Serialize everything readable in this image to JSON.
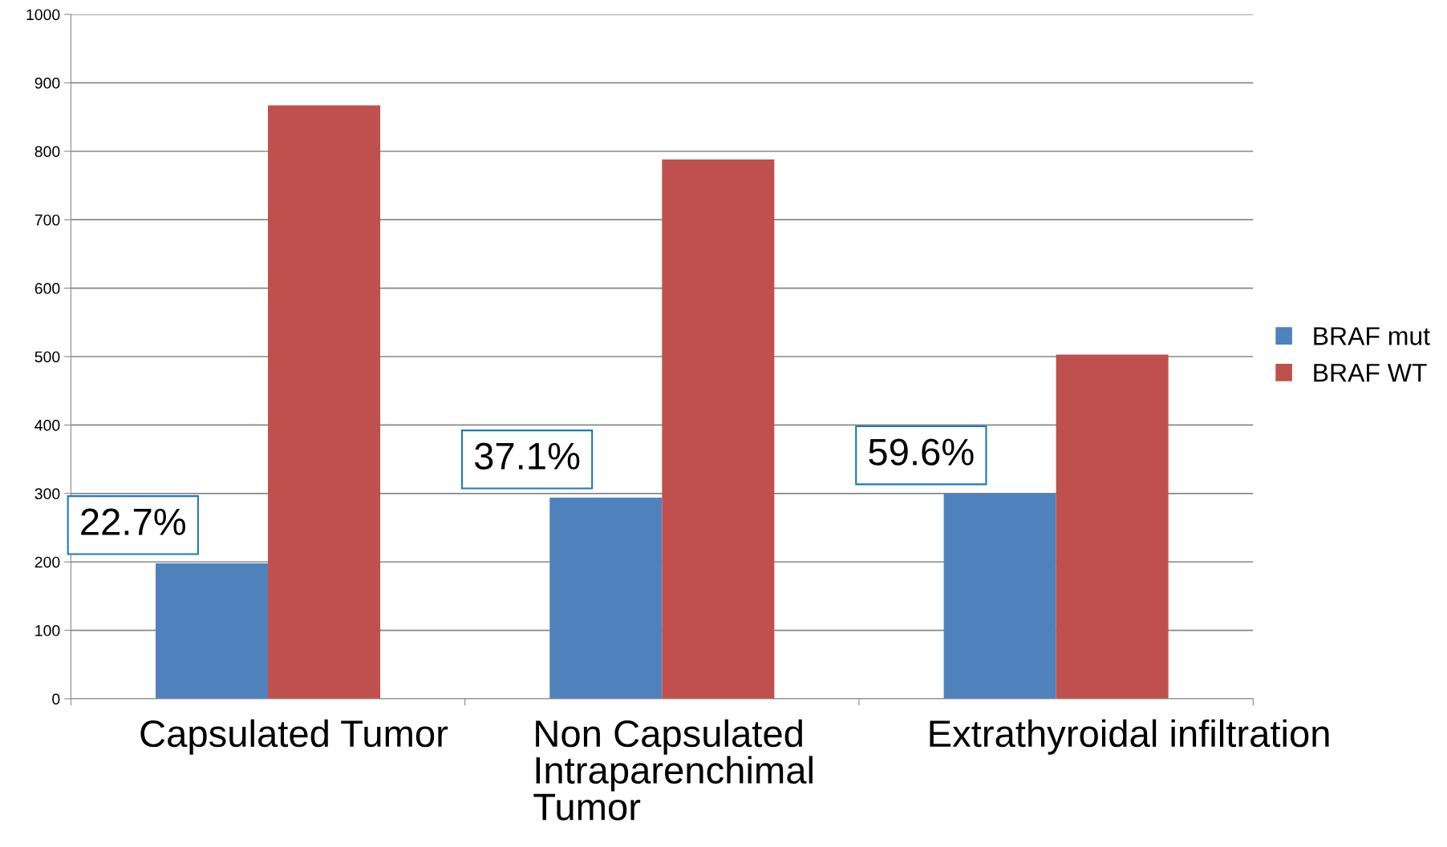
{
  "chart_data": {
    "type": "bar",
    "categories": [
      "Capsulated Tumor",
      "Non Capsulated\nIntraparenchimal\nTumor",
      "Extrathyroidal infiltration"
    ],
    "series": [
      {
        "name": "BRAF mut",
        "color": "#4f81bd",
        "values": [
          198,
          294,
          300
        ]
      },
      {
        "name": "BRAF WT",
        "color": "#c0504d",
        "values": [
          867,
          788,
          503
        ]
      }
    ],
    "ylim": [
      0,
      1000
    ],
    "yticks": [
      0,
      100,
      200,
      300,
      400,
      500,
      600,
      700,
      800,
      900,
      1000
    ],
    "grid": "y",
    "legend": "right",
    "annotations": [
      "22.7%",
      "37.1%",
      "59.6%"
    ]
  }
}
